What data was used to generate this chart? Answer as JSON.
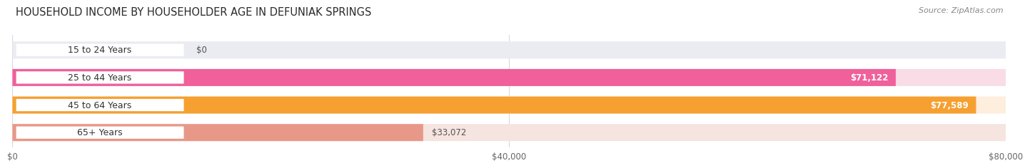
{
  "title": "HOUSEHOLD INCOME BY HOUSEHOLDER AGE IN DEFUNIAK SPRINGS",
  "source": "Source: ZipAtlas.com",
  "categories": [
    "15 to 24 Years",
    "25 to 44 Years",
    "45 to 64 Years",
    "65+ Years"
  ],
  "values": [
    0,
    71122,
    77589,
    33072
  ],
  "bar_colors": [
    "#b0b0e0",
    "#f0609a",
    "#f5a030",
    "#e89888"
  ],
  "bar_bg_colors": [
    "#ebebf2",
    "#f9dce6",
    "#fdeedd",
    "#f5e4e0"
  ],
  "value_labels": [
    "$0",
    "$71,122",
    "$77,589",
    "$33,072"
  ],
  "value_inside": [
    false,
    true,
    true,
    false
  ],
  "x_tick_labels": [
    "$0",
    "$40,000",
    "$80,000"
  ],
  "x_tick_values": [
    0,
    40000,
    80000
  ],
  "xmax": 80000,
  "figsize": [
    14.06,
    2.33
  ],
  "dpi": 100,
  "title_fontsize": 10.5,
  "cat_fontsize": 9,
  "value_fontsize": 8.5,
  "source_fontsize": 8,
  "tick_fontsize": 8.5,
  "background_color": "#ffffff",
  "grid_color": "#d8d8d8",
  "value_outside_color": "#555555",
  "value_inside_color": "#ffffff"
}
